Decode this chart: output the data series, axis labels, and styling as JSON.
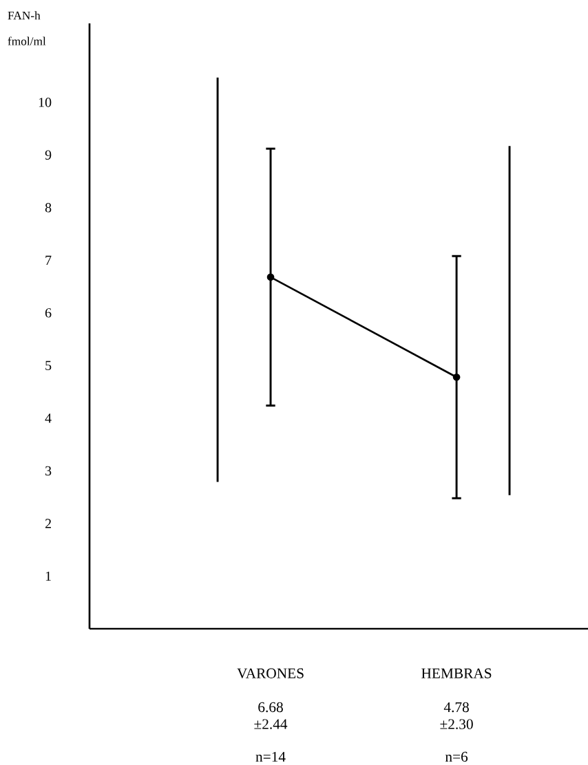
{
  "chart_data": {
    "type": "line",
    "ylabel": "FAN-h fmol/ml",
    "categories": [
      "VARONES",
      "HEMBRAS"
    ],
    "series": [
      {
        "color": "#000000",
        "values": [
          6.68,
          4.78
        ],
        "errors": [
          2.44,
          2.3
        ]
      },
      {
        "type": "bar",
        "color": "#000000",
        "base": [
          2.79,
          2.54
        ],
        "values": [
          7.68,
          6.63
        ]
      }
    ],
    "ylim": [
      0,
      11.5
    ],
    "yticks": [
      1,
      2,
      3,
      4,
      5,
      6,
      7,
      8,
      9,
      10
    ],
    "marker": "circle",
    "line_style": "solid",
    "grid": false,
    "annotations": [
      "6.68",
      "±2.44",
      "n=14",
      "4.78",
      "±2.30",
      "n=6"
    ]
  }
}
